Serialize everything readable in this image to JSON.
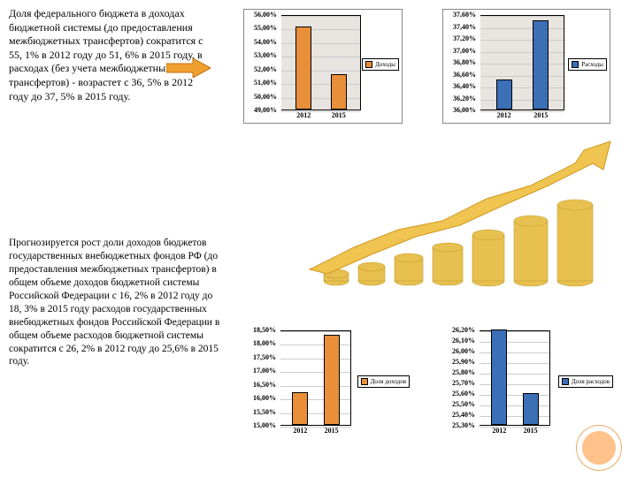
{
  "text1": "Доля федерального бюджета в доходах бюджетной системы (до предоставления межбюджетных трансфертов) сократится с 55, 1% в 2012 году до 51, 6% в 2015 году, в расходах (без учета межбюджетных трансфертов) - возрастет с 36, 5% в 2012 году до 37, 5% в 2015 году.",
  "text2": "Прогнозируется рост доли доходов бюджетов государственных внебюджетных фондов РФ (до предоставления межбюджетных трансфертов) в общем объеме доходов бюджетной системы Российской Федерации с 16, 2% в 2012 году до 18, 3% в 2015 году расходов государственных внебюджетных фондов Российской Федерации в общем объеме расходов бюджетной системы сократится с 26, 2% в 2012 году до 25,6% в 2015 году.",
  "chart1": {
    "yticks": [
      "56,00%",
      "55,00%",
      "54,00%",
      "53,00%",
      "52,00%",
      "51,00%",
      "50,00%",
      "49,00%"
    ],
    "xticks": [
      "2012",
      "2015"
    ],
    "ymin": 49,
    "ymax": 56,
    "values": [
      55.1,
      51.6
    ],
    "bar_color": "#e98f3a",
    "legend": "Доходы",
    "plot_bg": "#e8e4e0"
  },
  "chart2": {
    "yticks": [
      "37,60%",
      "37,40%",
      "37,20%",
      "37,00%",
      "36,80%",
      "36,60%",
      "36,40%",
      "36,20%",
      "36,00%"
    ],
    "xticks": [
      "2012",
      "2015"
    ],
    "ymin": 36,
    "ymax": 37.6,
    "values": [
      36.5,
      37.5
    ],
    "bar_color": "#3b6fb6",
    "legend": "Расходы",
    "plot_bg": "#e8e4e0"
  },
  "chart3": {
    "yticks": [
      "18,50%",
      "18,00%",
      "17,50%",
      "17,00%",
      "16,50%",
      "16,00%",
      "15,50%",
      "15,00%"
    ],
    "xticks": [
      "2012",
      "2015"
    ],
    "ymin": 15,
    "ymax": 18.5,
    "values": [
      16.2,
      18.3
    ],
    "bar_color": "#e98f3a",
    "legend": "Доля доходов",
    "plot_bg": "#ffffff"
  },
  "chart4": {
    "yticks": [
      "26,20%",
      "26,10%",
      "26,00%",
      "25,90%",
      "25,80%",
      "25,70%",
      "25,60%",
      "25,50%",
      "25,40%",
      "25,30%"
    ],
    "xticks": [
      "2012",
      "2015"
    ],
    "ymin": 25.3,
    "ymax": 26.2,
    "values": [
      26.2,
      25.6
    ],
    "bar_color": "#3b6fb6",
    "legend": "Доля расходов",
    "plot_bg": "#ffffff"
  },
  "arrow_color": "#f0a030",
  "coin_color": "#e8c050"
}
